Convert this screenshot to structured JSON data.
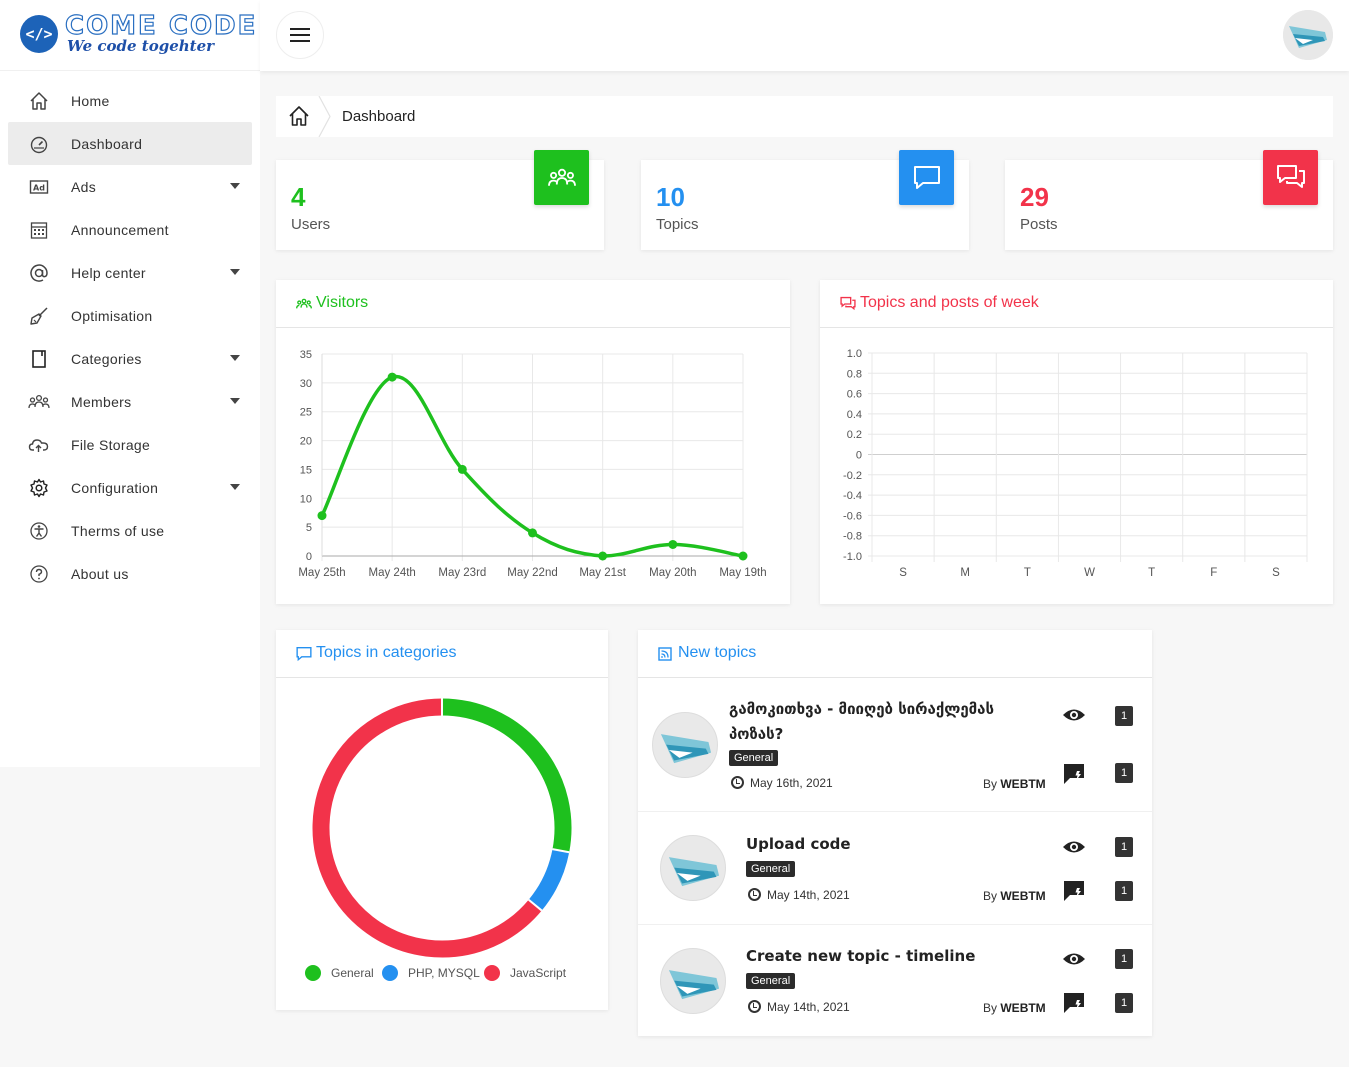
{
  "brand": {
    "badge": "</>",
    "title": "COME CODE",
    "subtitle": "We code togehter"
  },
  "sidebar": {
    "items": [
      {
        "label": "Home",
        "icon": "home-icon"
      },
      {
        "label": "Dashboard",
        "icon": "dashboard-icon",
        "active": true
      },
      {
        "label": "Ads",
        "icon": "ad-icon",
        "has_caret": true
      },
      {
        "label": "Announcement",
        "icon": "calendar-icon"
      },
      {
        "label": "Help center",
        "icon": "at-icon",
        "has_caret": true
      },
      {
        "label": "Optimisation",
        "icon": "broom-icon"
      },
      {
        "label": "Categories",
        "icon": "bookmark-icon",
        "has_caret": true
      },
      {
        "label": "Members",
        "icon": "members-icon",
        "has_caret": true
      },
      {
        "label": "File Storage",
        "icon": "cloud-upload-icon"
      },
      {
        "label": "Configuration",
        "icon": "gear-icon",
        "has_caret": true
      },
      {
        "label": "Therms of use",
        "icon": "accessibility-icon"
      },
      {
        "label": "About us",
        "icon": "question-icon"
      }
    ]
  },
  "breadcrumb": {
    "current": "Dashboard"
  },
  "stats": [
    {
      "value": "4",
      "label": "Users",
      "color": "#1ec01e",
      "icon": "users-icon"
    },
    {
      "value": "10",
      "label": "Topics",
      "color": "#2490f0",
      "icon": "comment-icon"
    },
    {
      "value": "29",
      "label": "Posts",
      "color": "#f2334a",
      "icon": "comments-icon"
    }
  ],
  "visitors_panel": {
    "title": "Visitors",
    "color": "#1ec01e"
  },
  "week_panel": {
    "title": "Topics and posts of week",
    "color": "#f2334a"
  },
  "categories_panel": {
    "title": "Topics in categories",
    "color": "#2490f0"
  },
  "new_topics_panel": {
    "title": "New topics",
    "color": "#2490f0"
  },
  "chart_data": [
    {
      "type": "line",
      "categories": [
        "May 25th",
        "May 24th",
        "May 23rd",
        "May 22nd",
        "May 21st",
        "May 20th",
        "May 19th"
      ],
      "series": [
        {
          "values": [
            7,
            31,
            15,
            4,
            0,
            2,
            0
          ]
        }
      ],
      "ylim": [
        0,
        35
      ],
      "yticks": [
        0,
        5,
        10,
        15,
        20,
        25,
        30,
        35
      ],
      "color": "#1ec01e",
      "grid": true
    },
    {
      "type": "line",
      "categories": [
        "S",
        "M",
        "T",
        "W",
        "T",
        "F",
        "S"
      ],
      "series": [],
      "ylim": [
        -1.0,
        1.0
      ],
      "ytick_labels": [
        "1.0",
        "0.8",
        "0.6",
        "0.4",
        "0.2",
        "0",
        "-0.2",
        "-0.4",
        "-0.6",
        "-0.8",
        "-1.0"
      ],
      "grid": true
    },
    {
      "type": "pie",
      "donut": true,
      "labels": [
        "General",
        "PHP, MYSQL",
        "JavaScript"
      ],
      "values": [
        7,
        2,
        16
      ],
      "colors": [
        "#1ec01e",
        "#2490f0",
        "#f2334a"
      ],
      "legend": "bottom"
    }
  ],
  "topics": [
    {
      "title": "გამოკითხვა - მიიღებ სირაქლემას პოზას?",
      "category": "General",
      "date": "May 16th, 2021",
      "by_prefix": "By",
      "author": "WEBTM",
      "views": "1",
      "replies": "1"
    },
    {
      "title": "Upload code",
      "category": "General",
      "date": "May 14th, 2021",
      "by_prefix": "By",
      "author": "WEBTM",
      "views": "1",
      "replies": "1"
    },
    {
      "title": "Create new topic - timeline",
      "category": "General",
      "date": "May 14th, 2021",
      "by_prefix": "By",
      "author": "WEBTM",
      "views": "1",
      "replies": "1"
    }
  ]
}
